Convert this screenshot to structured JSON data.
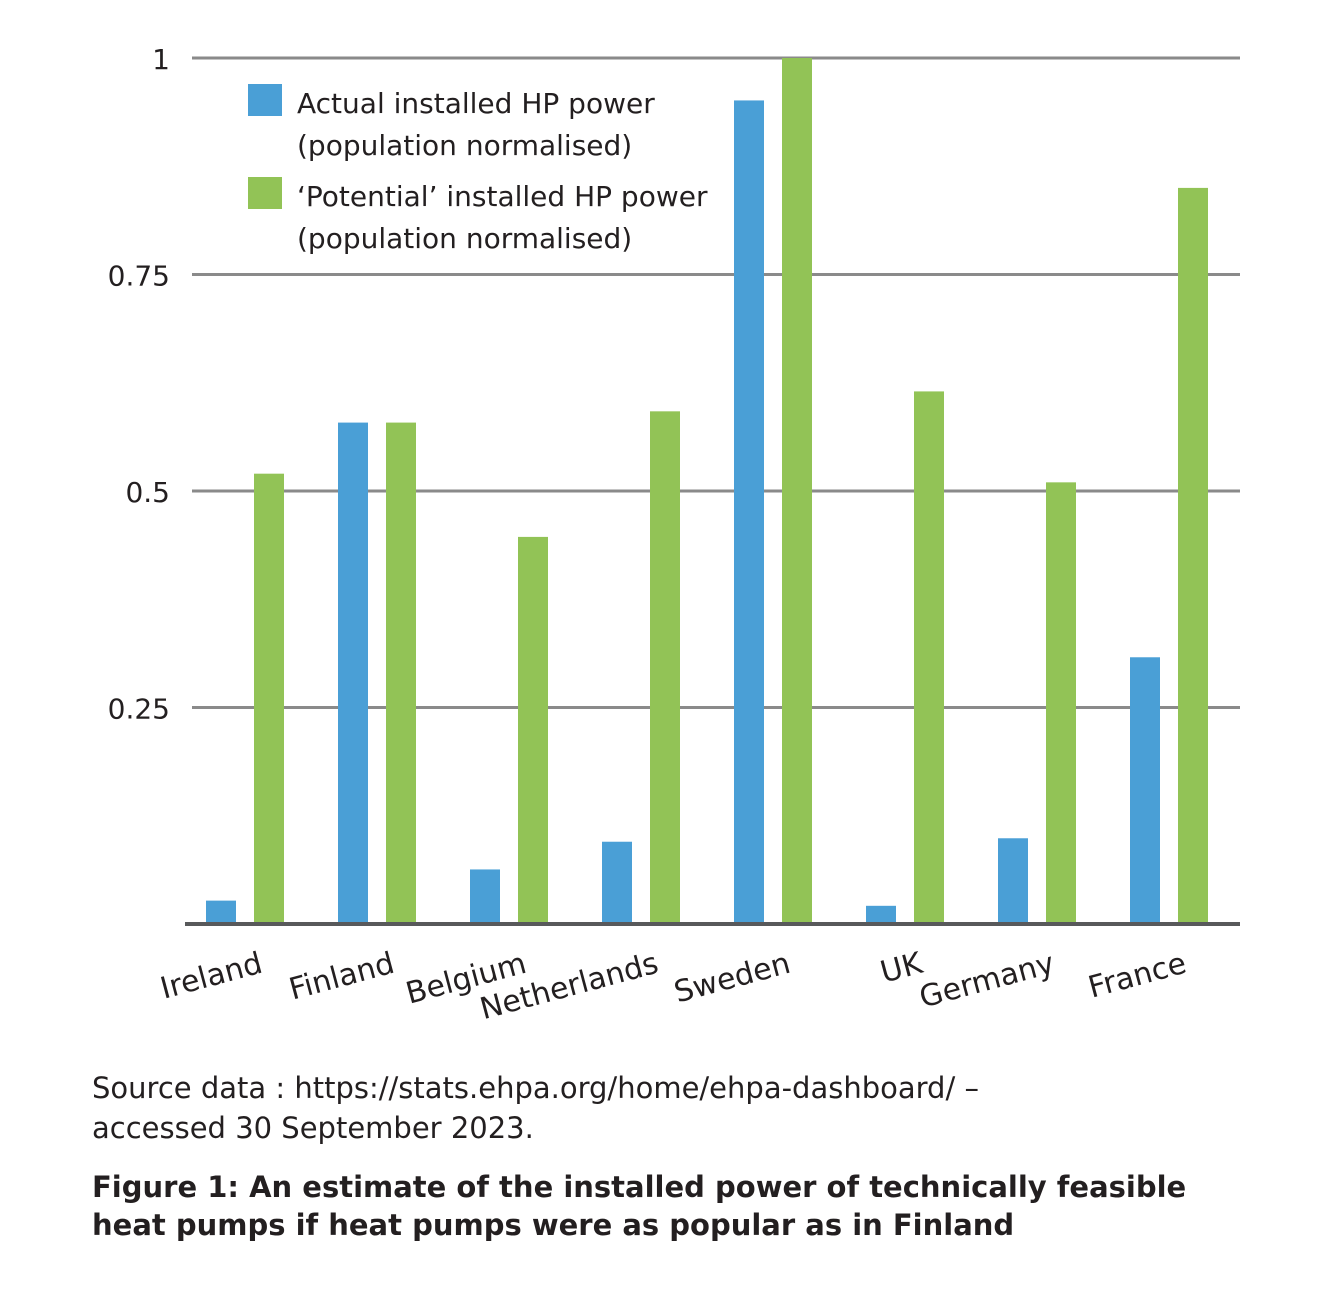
{
  "chart_data": {
    "type": "bar",
    "title": "",
    "xlabel": "",
    "ylabel": "",
    "ylim": [
      0,
      1
    ],
    "yticks": [
      0.25,
      0.5,
      0.75,
      1
    ],
    "ytick_labels": [
      "0.25",
      "0.5",
      "0.75",
      "1"
    ],
    "categories": [
      "Ireland",
      "Finland",
      "Belgium",
      "Netherlands",
      "Sweden",
      "UK",
      "Germany",
      "France"
    ],
    "grid": true,
    "legend_position": "top-left",
    "series": [
      {
        "name": "Actual installed HP power (population normalised)",
        "color": "#4a9fd6",
        "values": [
          0.027,
          0.579,
          0.063,
          0.095,
          0.951,
          0.021,
          0.099,
          0.308
        ]
      },
      {
        "name": "‘Potential’ installed HP power (population normalised)",
        "color": "#92c356",
        "values": [
          0.52,
          0.579,
          0.447,
          0.592,
          1.0,
          0.615,
          0.51,
          0.85
        ]
      }
    ],
    "legend_lines": [
      [
        "Actual installed HP power",
        "(population normalised)"
      ],
      [
        "‘Potential’ installed HP power",
        "(population normalised)"
      ]
    ]
  },
  "source_note": "Source data : https://stats.ehpa.org/home/ehpa-dashboard/ – accessed 30 September 2023.",
  "figure_caption": "Figure 1: An estimate of the installed power of technically feasible heat pumps if heat pumps were as popular as in Finland"
}
